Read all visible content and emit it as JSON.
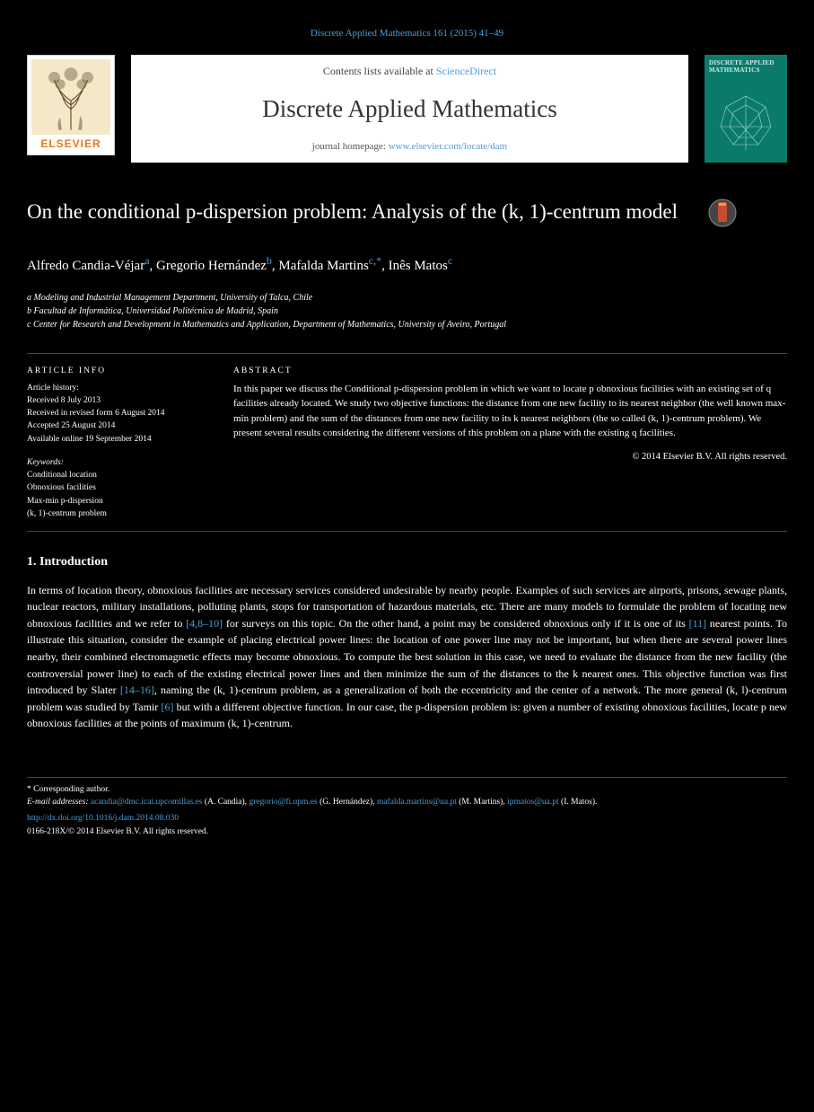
{
  "header": {
    "citation": "Discrete Applied Mathematics 161 (2015) 41–49"
  },
  "banner": {
    "contents_prefix": "Contents lists available at ",
    "contents_link": "ScienceDirect",
    "journal_title": "Discrete Applied Mathematics",
    "homepage_prefix": "journal homepage: ",
    "homepage_link": "www.elsevier.com/locate/dam",
    "elsevier_label": "ELSEVIER",
    "cover_title": "DISCRETE APPLIED MATHEMATICS",
    "cover_bg": "#0a7b6a",
    "cover_fg": "#d0ede6"
  },
  "article": {
    "title": "On the conditional p-dispersion problem: Analysis of the (k, 1)-centrum model",
    "authors_html": "Alfredo Candia-Véjar<sup>a</sup>,  Gregorio Hernández<sup>b</sup>,  Mafalda Martins<sup>c,*</sup>,  Inês Matos<sup>c</sup>",
    "affiliations": [
      "a Modeling and Industrial Management Department, University of Talca, Chile",
      "b Facultad de Informática, Universidad Politécnica de Madrid, Spain",
      "c Center for Research and Development in Mathematics and Application, Department of Mathematics, University of Aveiro, Portugal"
    ]
  },
  "info": {
    "article_info_heading": "ARTICLE  INFO",
    "history": [
      "Article history:",
      "Received 8 July 2013",
      "Received in revised form 6 August 2014",
      "Accepted 25 August 2014",
      "Available online 19 September 2014"
    ],
    "keywords_heading": "Keywords:",
    "keywords": [
      "Conditional location",
      "Obnoxious facilities",
      "Max-min p-dispersion",
      "(k, 1)-centrum problem"
    ],
    "abstract_heading": "ABSTRACT",
    "abstract": "In this paper we discuss the Conditional p-dispersion problem in which we want to locate p obnoxious facilities with an existing set of q facilities already located. We study two objective functions: the distance from one new facility to its nearest neighbor (the well known max-min problem) and the sum of the distances from one new facility to its k nearest neighbors (the so called (k, 1)-centrum problem). We present several results considering the different versions of this problem on a plane with the existing q facilities.",
    "copyright": "© 2014 Elsevier B.V. All rights reserved."
  },
  "section": {
    "heading": "1. Introduction",
    "body": "In terms of location theory, obnoxious facilities are necessary services considered undesirable by nearby people. Examples of such services are airports, prisons, sewage plants, nuclear reactors, military installations, polluting plants, stops for transportation of hazardous materials, etc. There are many models to formulate the problem of locating new obnoxious facilities and we refer to <span class=\"cite\">[4,8–10]</span> for surveys on this topic. On the other hand, a point may be considered obnoxious only if it is one of its <span class=\"cite\">[11]</span> nearest points. To illustrate this situation, consider the example of placing electrical power lines: the location of one power line may not be important, but when there are several power lines nearby, their combined electromagnetic effects may become obnoxious. To compute the best solution in this case, we need to evaluate the distance from the new facility (the controversial power line) to each of the existing electrical power lines and then minimize the sum of the distances to the k nearest ones. This objective function was first introduced by Slater <span class=\"cite\">[14–16]</span>, naming the (k, 1)-centrum problem, as a generalization of both the eccentricity and the center of a network. The more general (k, l)-centrum problem was studied by Tamir <span class=\"cite\">[6]</span> but with a different objective function. In our case, the p-dispersion problem is: given a number of existing obnoxious facilities, locate p new obnoxious facilities at the points of maximum (k, 1)-centrum."
  },
  "footnotes": {
    "corr_label": "* Corresponding author.",
    "emails_label": "E-mail addresses:",
    "emails": [
      {
        "addr": "acandia@dmc.icai.upcomillas.es",
        "who": "(A. Candia),"
      },
      {
        "addr": "gregorio@fi.upm.es",
        "who": "(G. Hernández),"
      },
      {
        "addr": "mafalda.martins@ua.pt",
        "who": "(M. Martins),"
      },
      {
        "addr": "ipmatos@ua.pt",
        "who": "(I. Matos)."
      }
    ],
    "doi": "http://dx.doi.org/10.1016/j.dam.2014.08.030",
    "issn": "0166-218X/© 2014 Elsevier B.V. All rights reserved."
  },
  "colors": {
    "link": "#4a9fd8",
    "elsevier_orange": "#e67817"
  }
}
